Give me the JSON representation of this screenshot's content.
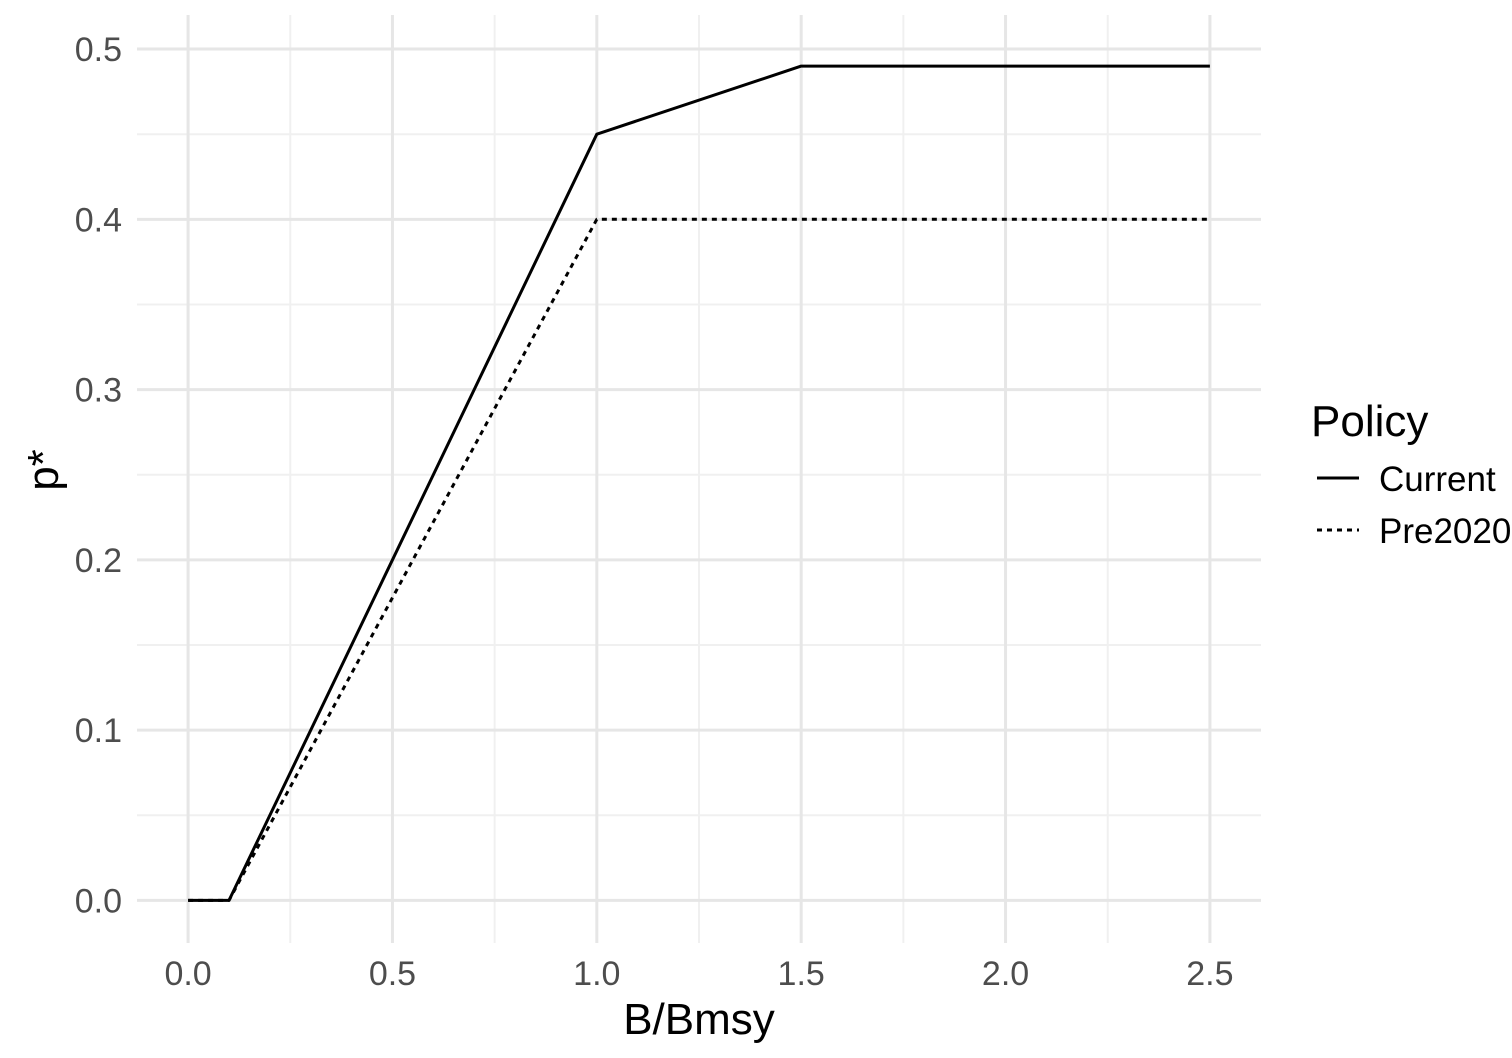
{
  "chart_data": {
    "type": "line",
    "xlabel": "B/Bmsy",
    "ylabel": "p*",
    "xlim": [
      -0.125,
      2.625
    ],
    "ylim": [
      -0.025,
      0.52
    ],
    "x_ticks": [
      0.0,
      0.5,
      1.0,
      1.5,
      2.0,
      2.5
    ],
    "x_tick_labels": [
      "0.0",
      "0.5",
      "1.0",
      "1.5",
      "2.0",
      "2.5"
    ],
    "y_ticks": [
      0.0,
      0.1,
      0.2,
      0.3,
      0.4,
      0.5
    ],
    "y_tick_labels": [
      "0.0",
      "0.1",
      "0.2",
      "0.3",
      "0.4",
      "0.5"
    ],
    "grid": true,
    "legend": {
      "title": "Policy",
      "placement": "right"
    },
    "series": [
      {
        "name": "Current",
        "line_style": "solid",
        "color": "#000000",
        "points": [
          [
            0.0,
            0.0
          ],
          [
            0.1,
            0.0
          ],
          [
            1.0,
            0.45
          ],
          [
            1.5,
            0.49
          ],
          [
            2.5,
            0.49
          ]
        ]
      },
      {
        "name": "Pre2020",
        "line_style": "dotted",
        "color": "#000000",
        "points": [
          [
            0.0,
            0.0
          ],
          [
            0.1,
            0.0
          ],
          [
            1.0,
            0.4
          ],
          [
            2.5,
            0.4
          ]
        ]
      }
    ]
  },
  "colors": {
    "background": "#ffffff",
    "grid_major": "#e6e6e6",
    "grid_minor": "#f0f0f0",
    "tick_text": "#4d4d4d",
    "line": "#000000"
  }
}
